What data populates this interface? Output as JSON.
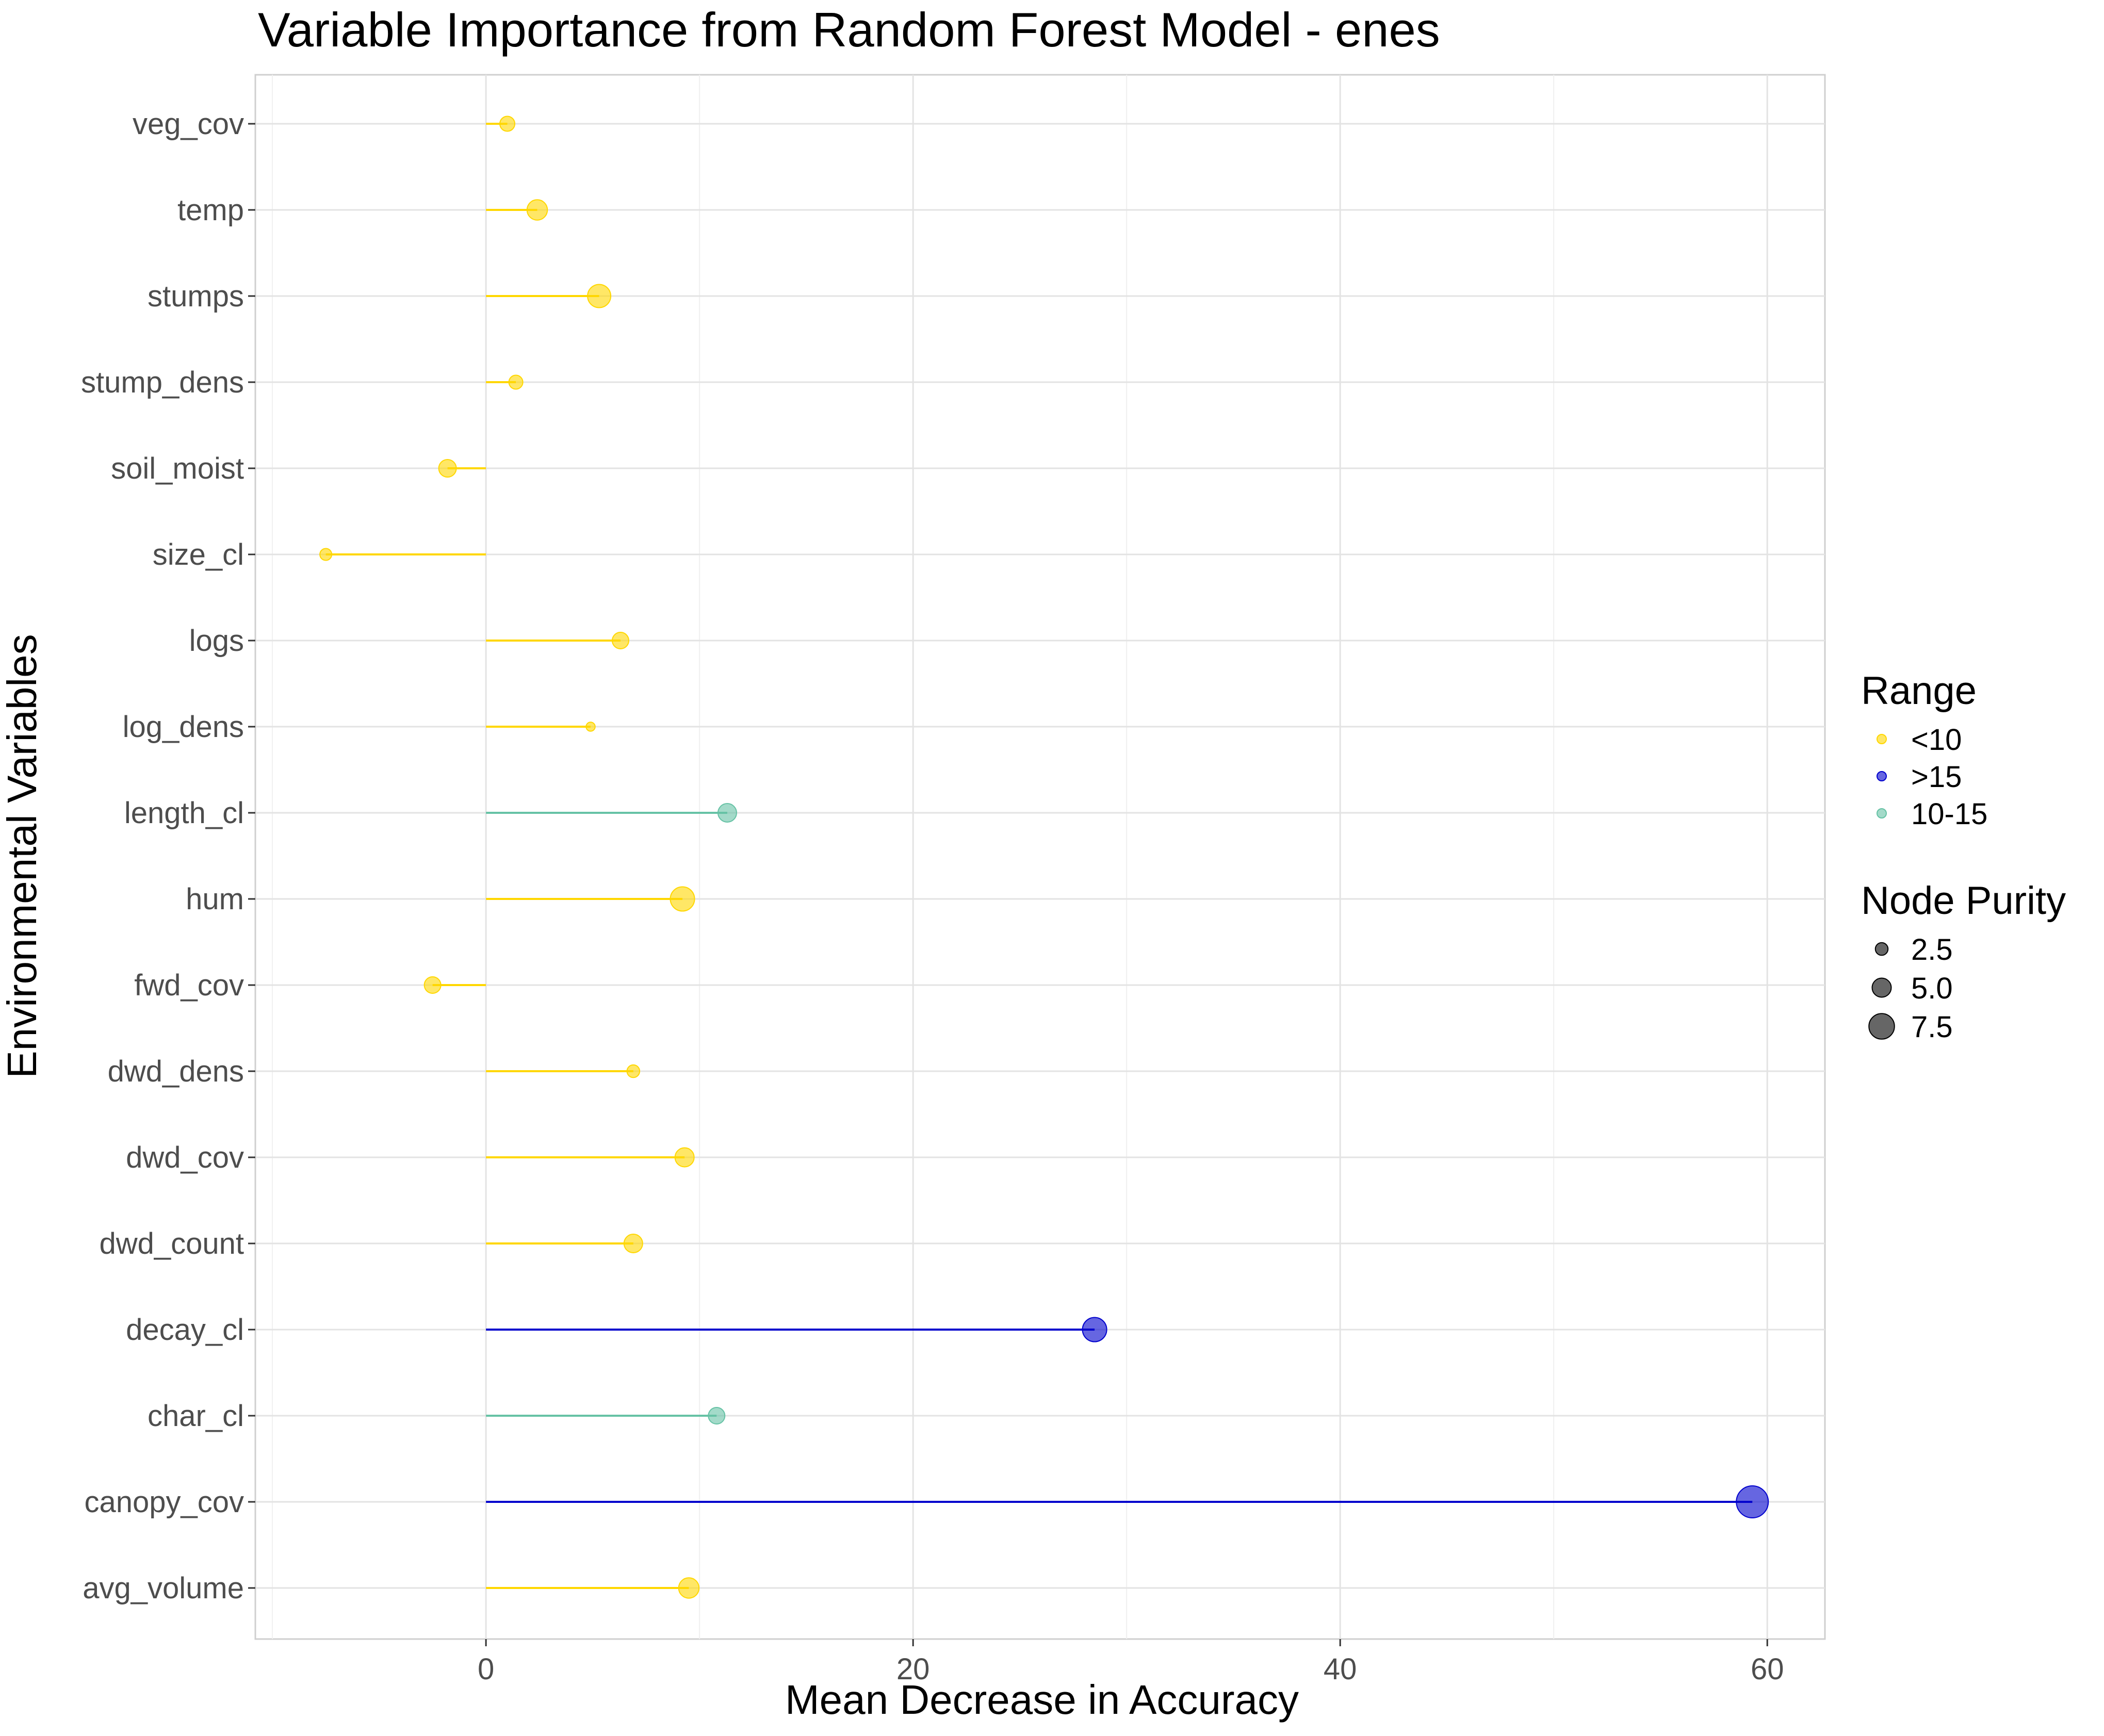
{
  "chart_data": {
    "type": "lollipop",
    "title": "Variable Importance from Random Forest Model - enes",
    "xlabel": "Mean Decrease in Accuracy",
    "ylabel": "Environmental Variables",
    "xlim": [
      -10.8,
      62.7
    ],
    "xticks": [
      0,
      20,
      40,
      60
    ],
    "grid": true,
    "legend_position": "right",
    "colors": {
      "<10": "#FFD700",
      ">15": "#0000CD",
      "10-15": "#66C2A5"
    },
    "categories": [
      "veg_cov",
      "temp",
      "stumps",
      "stump_dens",
      "soil_moist",
      "size_cl",
      "logs",
      "log_dens",
      "length_cl",
      "hum",
      "fwd_cov",
      "dwd_dens",
      "dwd_cov",
      "dwd_count",
      "decay_cl",
      "char_cl",
      "canopy_cov",
      "avg_volume"
    ],
    "values": [
      1.0,
      2.4,
      5.3,
      1.4,
      -1.8,
      -7.5,
      6.3,
      4.9,
      11.3,
      9.2,
      -2.5,
      6.9,
      9.3,
      6.9,
      28.5,
      10.8,
      59.3,
      9.5
    ],
    "range": [
      "<10",
      "<10",
      "<10",
      "<10",
      "<10",
      "<10",
      "<10",
      "<10",
      "10-15",
      "<10",
      "<10",
      "<10",
      "<10",
      "<10",
      ">15",
      "10-15",
      ">15",
      "<10"
    ],
    "node_purity": [
      3.4,
      5.5,
      6.6,
      3.0,
      4.4,
      2.2,
      4.0,
      1.1,
      4.8,
      7.0,
      4.0,
      2.5,
      5.0,
      4.8,
      7.0,
      4.0,
      10.0,
      5.5
    ],
    "legends": {
      "range": {
        "title": "Range",
        "items": [
          "<10",
          ">15",
          "10-15"
        ]
      },
      "node_purity": {
        "title": "Node Purity",
        "items": [
          2.5,
          5.0,
          7.5
        ]
      }
    }
  }
}
